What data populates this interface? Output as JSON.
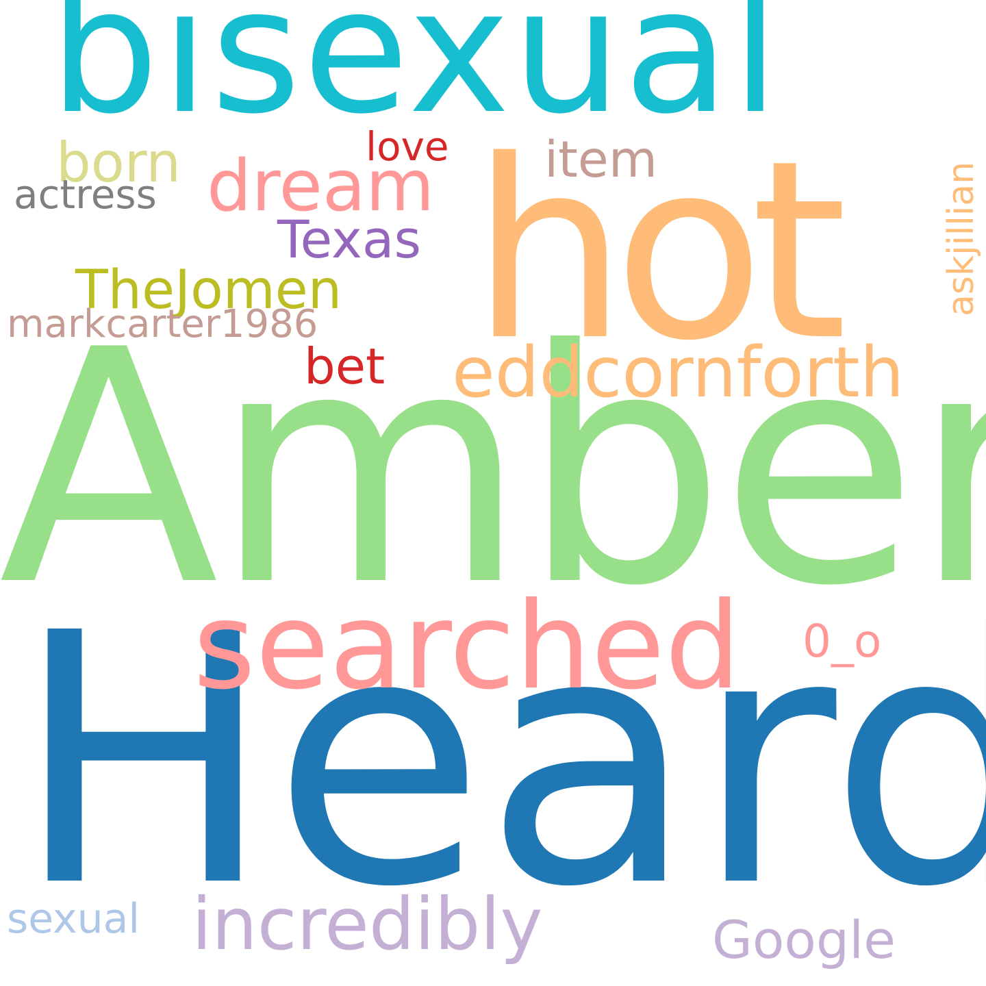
{
  "wordcloud": {
    "words": [
      {
        "key": "heard",
        "text": "Heard",
        "color": "#1f77b4"
      },
      {
        "key": "amber",
        "text": "Amber",
        "color": "#98df8a"
      },
      {
        "key": "hot",
        "text": "hot",
        "color": "#ffbb78"
      },
      {
        "key": "bisexual",
        "text": "bisexual",
        "color": "#17becf"
      },
      {
        "key": "searched",
        "text": "searched",
        "color": "#ff9896"
      },
      {
        "key": "eddcornforth",
        "text": "eddcornforth",
        "color": "#ffbb78"
      },
      {
        "key": "dream",
        "text": "dream",
        "color": "#ff9896"
      },
      {
        "key": "incredibly",
        "text": "incredibly",
        "color": "#c5b0d5"
      },
      {
        "key": "born",
        "text": "born",
        "color": "#dbdb8d"
      },
      {
        "key": "item",
        "text": "item",
        "color": "#c49c94"
      },
      {
        "key": "love",
        "text": "love",
        "color": "#d62728"
      },
      {
        "key": "actress",
        "text": "actress",
        "color": "#7f7f7f"
      },
      {
        "key": "texas",
        "text": "Texas",
        "color": "#9467bd"
      },
      {
        "key": "thejomen",
        "text": "TheJomen",
        "color": "#bcbd22"
      },
      {
        "key": "markcarter",
        "text": "markcarter1986",
        "color": "#c49c94"
      },
      {
        "key": "bet",
        "text": "bet",
        "color": "#d62728"
      },
      {
        "key": "oo",
        "text": "0_o",
        "color": "#ff9896"
      },
      {
        "key": "google",
        "text": "Google",
        "color": "#c5b0d5"
      },
      {
        "key": "sexual",
        "text": "sexual",
        "color": "#aec7e8"
      },
      {
        "key": "askjillian",
        "text": "askjillian",
        "color": "#ffbb78",
        "orientation": "vertical"
      }
    ]
  }
}
